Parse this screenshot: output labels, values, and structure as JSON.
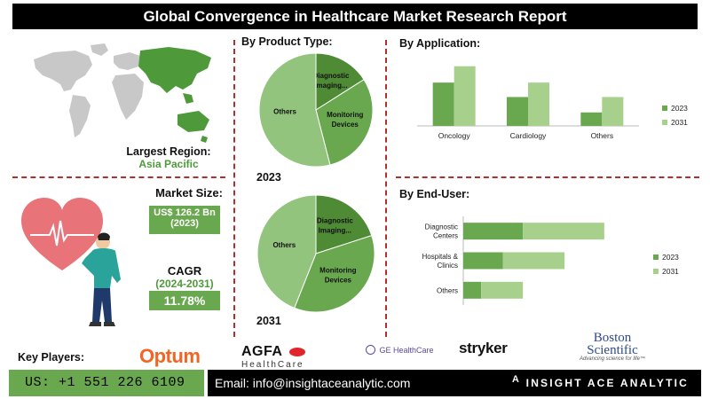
{
  "title": "Global Convergence in Healthcare Market Research Report",
  "region": {
    "label": "Largest Region:",
    "value": "Asia Pacific"
  },
  "market_size": {
    "label": "Market Size:",
    "value": "US$ 126.2 Bn",
    "year": "(2023)"
  },
  "cagr": {
    "label": "CAGR",
    "years": "(2024-2031)",
    "value": "11.78%"
  },
  "key_players": {
    "label": "Key Players:",
    "optum": "Optum",
    "agfa_main": "AGFA",
    "agfa_sub": "HealthCare",
    "ge": "GE HealthCare",
    "stryker": "stryker",
    "boston_1": "Boston",
    "boston_2": "Scientific",
    "boston_tag": "Advancing science for life™"
  },
  "footer": {
    "phone": "US: +1 551 226 6109",
    "email": "Email: info@insightaceanalytic.com",
    "brand": "INSIGHT ACE ANALYTIC"
  },
  "colors": {
    "dark_green": "#4f8a35",
    "mid_green": "#6aa84f",
    "light_green": "#93c47d",
    "pale_green": "#a8d08d",
    "accent_red": "#b03030"
  },
  "chart_data": [
    {
      "id": "product_2023",
      "type": "pie",
      "title": "By Product Type:",
      "year_label": "2023",
      "labels": [
        "Diagnostic Imaging...",
        "Monitoring Devices",
        "Others"
      ],
      "values": [
        16,
        30,
        54
      ],
      "colors": [
        "#4f8a35",
        "#6aa84f",
        "#93c47d"
      ]
    },
    {
      "id": "product_2031",
      "type": "pie",
      "year_label": "2031",
      "labels": [
        "Diagnostic Imaging...",
        "Monitoring Devices",
        "Others"
      ],
      "values": [
        20,
        36,
        44
      ],
      "colors": [
        "#4f8a35",
        "#6aa84f",
        "#93c47d"
      ]
    },
    {
      "id": "application",
      "type": "bar",
      "title": "By  Application:",
      "categories": [
        "Oncology",
        "Cardiology",
        "Others"
      ],
      "series": [
        {
          "name": "2023",
          "values": [
            45,
            30,
            14
          ],
          "color": "#6aa84f"
        },
        {
          "name": "2031",
          "values": [
            62,
            45,
            30
          ],
          "color": "#a8d08d"
        }
      ],
      "ylim": [
        0,
        70
      ],
      "grid": false,
      "legend": "right"
    },
    {
      "id": "end_user",
      "type": "bar",
      "orientation": "horizontal",
      "stacked": true,
      "title": "By End-User:",
      "categories": [
        "Diagnostic Centers",
        "Hospitals & Clinics",
        "Others"
      ],
      "category_lines": [
        [
          "Diagnostic",
          "Centers"
        ],
        [
          "Hospitals &",
          "Clinics"
        ],
        [
          "Others"
        ]
      ],
      "series": [
        {
          "name": "2023",
          "values": [
            30,
            20,
            9
          ],
          "color": "#6aa84f"
        },
        {
          "name": "2031",
          "values": [
            41,
            31,
            21
          ],
          "color": "#a8d08d"
        }
      ],
      "xlim": [
        0,
        80
      ],
      "grid": false,
      "legend": "right"
    }
  ]
}
